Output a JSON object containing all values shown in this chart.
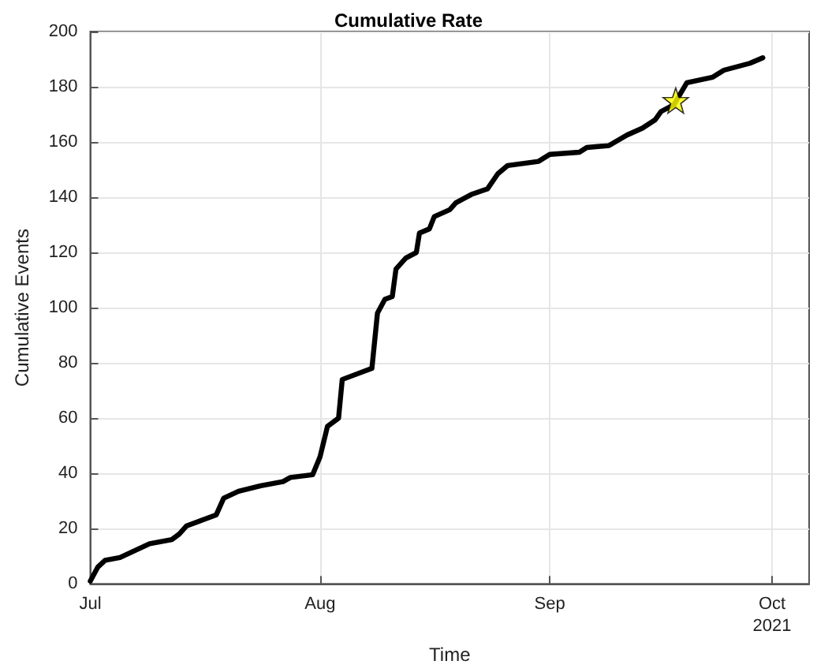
{
  "chart_data": {
    "type": "line",
    "title": "Cumulative Rate",
    "xlabel": "Time",
    "ylabel": "Cumulative Events",
    "xlim": [
      "2021-07-01",
      "2021-10-06"
    ],
    "ylim": [
      0,
      200
    ],
    "xticks": [
      {
        "value": "2021-07-01",
        "label": "Jul"
      },
      {
        "value": "2021-08-01",
        "label": "Aug"
      },
      {
        "value": "2021-09-01",
        "label": "Sep"
      },
      {
        "value": "2021-10-01",
        "label": "Oct\n2021"
      }
    ],
    "yticks": [
      0,
      20,
      40,
      60,
      80,
      100,
      120,
      140,
      160,
      180,
      200
    ],
    "grid": true,
    "series": [
      {
        "color": "#000000",
        "marker": "none",
        "line_style": "solid",
        "x": [
          "2021-07-01",
          "2021-07-02",
          "2021-07-03",
          "2021-07-05",
          "2021-07-07",
          "2021-07-09",
          "2021-07-12",
          "2021-07-13",
          "2021-07-14",
          "2021-07-16",
          "2021-07-18",
          "2021-07-19",
          "2021-07-21",
          "2021-07-24",
          "2021-07-27",
          "2021-07-28",
          "2021-07-31",
          "2021-08-01",
          "2021-08-02",
          "2021-08-03T12:00",
          "2021-08-04",
          "2021-08-08",
          "2021-08-08T18:00",
          "2021-08-09T18:00",
          "2021-08-10T18:00",
          "2021-08-11T06:00",
          "2021-08-12T14:00",
          "2021-08-14",
          "2021-08-14T10:00",
          "2021-08-15T18:00",
          "2021-08-16T10:00",
          "2021-08-18T12:00",
          "2021-08-19T08:00",
          "2021-08-21T10:00",
          "2021-08-23T14:00",
          "2021-08-25",
          "2021-08-26T08:00",
          "2021-08-30T12:00",
          "2021-09-01",
          "2021-09-05",
          "2021-09-06",
          "2021-09-09",
          "2021-09-11T10:00",
          "2021-09-13T12:00",
          "2021-09-15T05:00",
          "2021-09-16",
          "2021-09-17T18:00",
          "2021-09-19T12:00",
          "2021-09-23",
          "2021-09-24T12:00",
          "2021-09-28",
          "2021-09-29T18:00"
        ],
        "values": [
          1,
          6,
          8.5,
          9.5,
          12,
          14.5,
          16,
          18,
          21,
          23,
          25,
          31,
          33.5,
          35.5,
          37,
          38.5,
          39.5,
          46,
          57,
          60,
          74,
          78,
          98,
          103,
          104,
          114,
          118,
          120,
          127,
          128.5,
          133,
          135.5,
          138,
          141,
          143,
          148.5,
          151.5,
          153,
          155.5,
          156.3,
          158,
          158.7,
          162.5,
          165,
          168,
          171,
          173.5,
          181.5,
          183.5,
          186,
          188.5,
          190.5
        ]
      },
      {
        "type": "scatter",
        "color": "#ffff00",
        "marker": "star",
        "x": [
          "2021-09-18"
        ],
        "values": [
          175
        ]
      }
    ]
  }
}
